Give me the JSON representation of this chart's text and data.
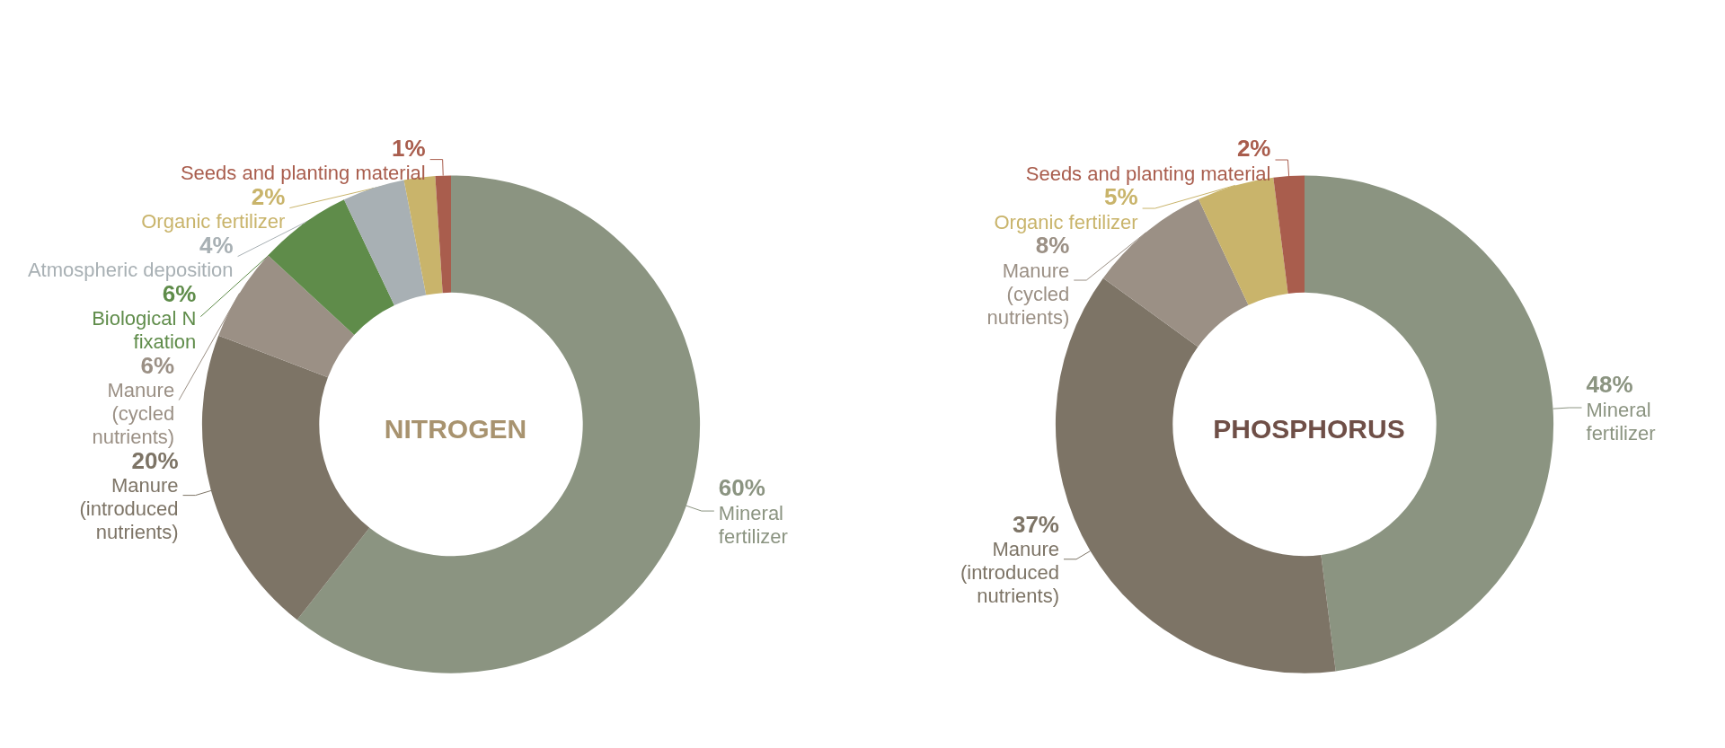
{
  "chart_data": [
    {
      "type": "donut",
      "title": "NITROGEN",
      "categories": [
        "Mineral fertilizer",
        "Manure (introduced nutrients)",
        "Manure (cycled nutrients)",
        "Biological N fixation",
        "Atmospheric deposition",
        "Organic fertilizer",
        "Seeds and planting material"
      ],
      "values": [
        60,
        20,
        6,
        6,
        4,
        2,
        1
      ],
      "value_labels": [
        "60%",
        "20%",
        "6%",
        "6%",
        "4%",
        "2%",
        "1%"
      ],
      "colors": [
        "#8b9481",
        "#7d7466",
        "#9b9085",
        "#5f8c4a",
        "#a8b0b4",
        "#c9b46b",
        "#a95d4d"
      ]
    },
    {
      "type": "donut",
      "title": "PHOSPHORUS",
      "categories": [
        "Mineral fertilizer",
        "Manure (introduced nutrients)",
        "Manure (cycled nutrients)",
        "Organic fertilizer",
        "Seeds and planting material"
      ],
      "values": [
        48,
        37,
        8,
        5,
        2
      ],
      "value_labels": [
        "48%",
        "37%",
        "8%",
        "5%",
        "2%"
      ],
      "colors": [
        "#8b9481",
        "#7d7466",
        "#9b9085",
        "#c9b46b",
        "#a95d4d"
      ]
    }
  ]
}
